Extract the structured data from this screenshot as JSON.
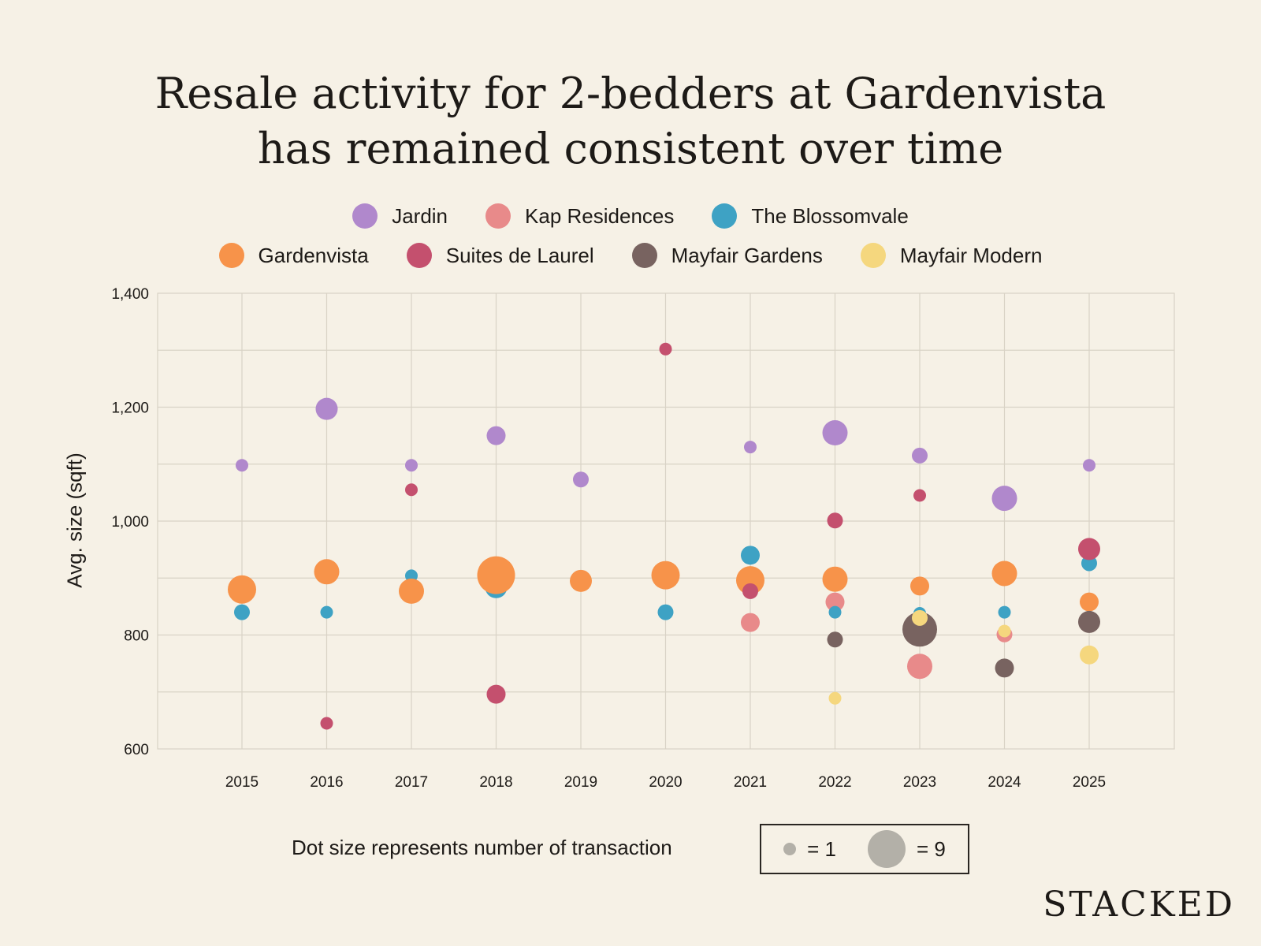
{
  "chart_data": {
    "type": "scatter",
    "title": "Resale activity for 2-bedders at Gardenvista has remained consistent over time",
    "title_lines": [
      "Resale activity for 2-bedders at Gardenvista",
      "has remained consistent over time"
    ],
    "ylabel": "Avg. size (sqft)",
    "xlabel": "",
    "ylim": [
      600,
      1400
    ],
    "yticks": [
      600,
      800,
      1000,
      1200,
      1400
    ],
    "ytick_labels": [
      "600",
      "800",
      "1,000",
      "1,200",
      "1,400"
    ],
    "x_categories": [
      "2015",
      "2016",
      "2017",
      "2018",
      "2019",
      "2020",
      "2021",
      "2022",
      "2023",
      "2024",
      "2025"
    ],
    "grid": true,
    "legend_position": "top",
    "size_legend": {
      "text": "Dot size represents number of transaction",
      "small_label": "= 1",
      "large_label": "= 9"
    },
    "series": [
      {
        "name": "Jardin",
        "color": "#b088cc",
        "points": [
          {
            "x": "2015",
            "y": 1098,
            "n": 1
          },
          {
            "x": "2016",
            "y": 1197,
            "n": 4
          },
          {
            "x": "2017",
            "y": 1098,
            "n": 1
          },
          {
            "x": "2018",
            "y": 1150,
            "n": 3
          },
          {
            "x": "2019",
            "y": 1073,
            "n": 2
          },
          {
            "x": "2021",
            "y": 1130,
            "n": 1
          },
          {
            "x": "2022",
            "y": 1155,
            "n": 5
          },
          {
            "x": "2023",
            "y": 1115,
            "n": 2
          },
          {
            "x": "2024",
            "y": 1040,
            "n": 5
          },
          {
            "x": "2025",
            "y": 1098,
            "n": 1
          }
        ]
      },
      {
        "name": "Kap Residences",
        "color": "#e88a8a",
        "points": [
          {
            "x": "2021",
            "y": 822,
            "n": 3
          },
          {
            "x": "2022",
            "y": 858,
            "n": 3
          },
          {
            "x": "2023",
            "y": 745,
            "n": 5
          },
          {
            "x": "2024",
            "y": 801,
            "n": 2
          },
          {
            "x": "2025",
            "y": 927,
            "n": 1
          }
        ]
      },
      {
        "name": "The Blossomvale",
        "color": "#3ea2c4",
        "points": [
          {
            "x": "2015",
            "y": 840,
            "n": 2
          },
          {
            "x": "2016",
            "y": 840,
            "n": 1
          },
          {
            "x": "2017",
            "y": 904,
            "n": 1
          },
          {
            "x": "2018",
            "y": 884,
            "n": 4
          },
          {
            "x": "2020",
            "y": 840,
            "n": 2
          },
          {
            "x": "2021",
            "y": 940,
            "n": 3
          },
          {
            "x": "2022",
            "y": 840,
            "n": 1
          },
          {
            "x": "2023",
            "y": 838,
            "n": 1
          },
          {
            "x": "2024",
            "y": 840,
            "n": 1
          },
          {
            "x": "2025",
            "y": 926,
            "n": 2
          }
        ]
      },
      {
        "name": "Gardenvista",
        "color": "#f7934a",
        "points": [
          {
            "x": "2015",
            "y": 880,
            "n": 6
          },
          {
            "x": "2016",
            "y": 911,
            "n": 5
          },
          {
            "x": "2017",
            "y": 877,
            "n": 5
          },
          {
            "x": "2018",
            "y": 905,
            "n": 9
          },
          {
            "x": "2019",
            "y": 895,
            "n": 4
          },
          {
            "x": "2020",
            "y": 905,
            "n": 6
          },
          {
            "x": "2021",
            "y": 896,
            "n": 6
          },
          {
            "x": "2022",
            "y": 898,
            "n": 5
          },
          {
            "x": "2023",
            "y": 886,
            "n": 3
          },
          {
            "x": "2024",
            "y": 908,
            "n": 5
          },
          {
            "x": "2025",
            "y": 858,
            "n": 3
          }
        ]
      },
      {
        "name": "Suites de Laurel",
        "color": "#c4506e",
        "points": [
          {
            "x": "2016",
            "y": 645,
            "n": 1
          },
          {
            "x": "2017",
            "y": 1055,
            "n": 1
          },
          {
            "x": "2018",
            "y": 696,
            "n": 3
          },
          {
            "x": "2020",
            "y": 1302,
            "n": 1
          },
          {
            "x": "2021",
            "y": 877,
            "n": 2
          },
          {
            "x": "2022",
            "y": 1001,
            "n": 2
          },
          {
            "x": "2023",
            "y": 1045,
            "n": 1
          },
          {
            "x": "2025",
            "y": 951,
            "n": 4
          }
        ]
      },
      {
        "name": "Mayfair Gardens",
        "color": "#786360",
        "points": [
          {
            "x": "2022",
            "y": 792,
            "n": 2
          },
          {
            "x": "2023",
            "y": 810,
            "n": 8
          },
          {
            "x": "2024",
            "y": 742,
            "n": 3
          },
          {
            "x": "2025",
            "y": 823,
            "n": 4
          }
        ]
      },
      {
        "name": "Mayfair Modern",
        "color": "#f5d77e",
        "points": [
          {
            "x": "2022",
            "y": 689,
            "n": 1
          },
          {
            "x": "2023",
            "y": 830,
            "n": 2
          },
          {
            "x": "2024",
            "y": 807,
            "n": 1
          },
          {
            "x": "2025",
            "y": 765,
            "n": 3
          }
        ]
      }
    ]
  },
  "brand": "STACKED",
  "colors": {
    "background": "#f6f1e6",
    "grid": "#d9d3c6",
    "size_dot": "#b3b0a8"
  }
}
